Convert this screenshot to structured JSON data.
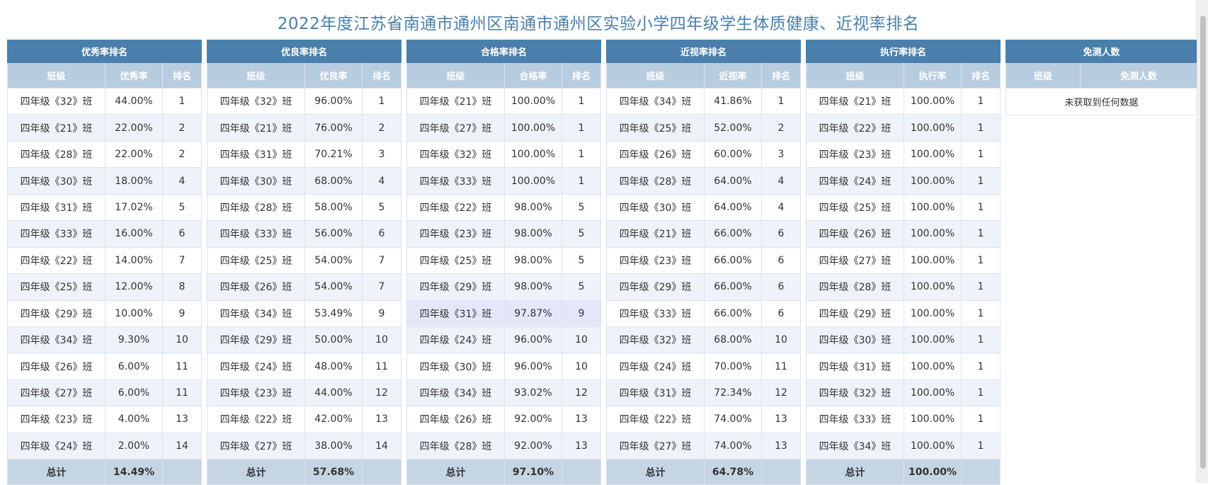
{
  "title": "2022年度江苏省南通市通州区南通市通州区实验小学四年级学生体质健康、近视率排名",
  "panels": [
    {
      "title": "优秀率排名",
      "cols": [
        "班级",
        "优秀率",
        "排名"
      ],
      "rows": [
        [
          "四年级《32》班",
          "44.00%",
          "1"
        ],
        [
          "四年级《21》班",
          "22.00%",
          "2"
        ],
        [
          "四年级《28》班",
          "22.00%",
          "2"
        ],
        [
          "四年级《30》班",
          "18.00%",
          "4"
        ],
        [
          "四年级《31》班",
          "17.02%",
          "5"
        ],
        [
          "四年级《33》班",
          "16.00%",
          "6"
        ],
        [
          "四年级《22》班",
          "14.00%",
          "7"
        ],
        [
          "四年级《25》班",
          "12.00%",
          "8"
        ],
        [
          "四年级《29》班",
          "10.00%",
          "9"
        ],
        [
          "四年级《34》班",
          "9.30%",
          "10"
        ],
        [
          "四年级《26》班",
          "6.00%",
          "11"
        ],
        [
          "四年级《27》班",
          "6.00%",
          "11"
        ],
        [
          "四年级《23》班",
          "4.00%",
          "13"
        ],
        [
          "四年级《24》班",
          "2.00%",
          "14"
        ]
      ],
      "total_label": "总计",
      "total_value": "14.49%"
    },
    {
      "title": "优良率排名",
      "cols": [
        "班级",
        "优良率",
        "排名"
      ],
      "rows": [
        [
          "四年级《32》班",
          "96.00%",
          "1"
        ],
        [
          "四年级《21》班",
          "76.00%",
          "2"
        ],
        [
          "四年级《31》班",
          "70.21%",
          "3"
        ],
        [
          "四年级《30》班",
          "68.00%",
          "4"
        ],
        [
          "四年级《28》班",
          "58.00%",
          "5"
        ],
        [
          "四年级《33》班",
          "56.00%",
          "6"
        ],
        [
          "四年级《25》班",
          "54.00%",
          "7"
        ],
        [
          "四年级《26》班",
          "54.00%",
          "7"
        ],
        [
          "四年级《34》班",
          "53.49%",
          "9"
        ],
        [
          "四年级《29》班",
          "50.00%",
          "10"
        ],
        [
          "四年级《24》班",
          "48.00%",
          "11"
        ],
        [
          "四年级《23》班",
          "44.00%",
          "12"
        ],
        [
          "四年级《22》班",
          "42.00%",
          "13"
        ],
        [
          "四年级《27》班",
          "38.00%",
          "14"
        ]
      ],
      "total_label": "总计",
      "total_value": "57.68%"
    },
    {
      "title": "合格率排名",
      "cols": [
        "班级",
        "合格率",
        "排名"
      ],
      "rows": [
        [
          "四年级《21》班",
          "100.00%",
          "1"
        ],
        [
          "四年级《27》班",
          "100.00%",
          "1"
        ],
        [
          "四年级《32》班",
          "100.00%",
          "1"
        ],
        [
          "四年级《33》班",
          "100.00%",
          "1"
        ],
        [
          "四年级《22》班",
          "98.00%",
          "5"
        ],
        [
          "四年级《23》班",
          "98.00%",
          "5"
        ],
        [
          "四年级《25》班",
          "98.00%",
          "5"
        ],
        [
          "四年级《29》班",
          "98.00%",
          "5"
        ],
        [
          "四年级《31》班",
          "97.87%",
          "9"
        ],
        [
          "四年级《24》班",
          "96.00%",
          "10"
        ],
        [
          "四年级《30》班",
          "96.00%",
          "10"
        ],
        [
          "四年级《34》班",
          "93.02%",
          "12"
        ],
        [
          "四年级《26》班",
          "92.00%",
          "13"
        ],
        [
          "四年级《28》班",
          "92.00%",
          "13"
        ]
      ],
      "highlight_row": 8,
      "total_label": "总计",
      "total_value": "97.10%"
    },
    {
      "title": "近视率排名",
      "cols": [
        "班级",
        "近视率",
        "排名"
      ],
      "rows": [
        [
          "四年级《34》班",
          "41.86%",
          "1"
        ],
        [
          "四年级《25》班",
          "52.00%",
          "2"
        ],
        [
          "四年级《26》班",
          "60.00%",
          "3"
        ],
        [
          "四年级《28》班",
          "64.00%",
          "4"
        ],
        [
          "四年级《30》班",
          "64.00%",
          "4"
        ],
        [
          "四年级《21》班",
          "66.00%",
          "6"
        ],
        [
          "四年级《23》班",
          "66.00%",
          "6"
        ],
        [
          "四年级《29》班",
          "66.00%",
          "6"
        ],
        [
          "四年级《33》班",
          "66.00%",
          "6"
        ],
        [
          "四年级《32》班",
          "68.00%",
          "10"
        ],
        [
          "四年级《24》班",
          "70.00%",
          "11"
        ],
        [
          "四年级《31》班",
          "72.34%",
          "12"
        ],
        [
          "四年级《22》班",
          "74.00%",
          "13"
        ],
        [
          "四年级《27》班",
          "74.00%",
          "13"
        ]
      ],
      "total_label": "总计",
      "total_value": "64.78%"
    },
    {
      "title": "执行率排名",
      "cols": [
        "班级",
        "执行率",
        "排名"
      ],
      "rows": [
        [
          "四年级《21》班",
          "100.00%",
          "1"
        ],
        [
          "四年级《22》班",
          "100.00%",
          "1"
        ],
        [
          "四年级《23》班",
          "100.00%",
          "1"
        ],
        [
          "四年级《24》班",
          "100.00%",
          "1"
        ],
        [
          "四年级《25》班",
          "100.00%",
          "1"
        ],
        [
          "四年级《26》班",
          "100.00%",
          "1"
        ],
        [
          "四年级《27》班",
          "100.00%",
          "1"
        ],
        [
          "四年级《28》班",
          "100.00%",
          "1"
        ],
        [
          "四年级《29》班",
          "100.00%",
          "1"
        ],
        [
          "四年级《30》班",
          "100.00%",
          "1"
        ],
        [
          "四年级《31》班",
          "100.00%",
          "1"
        ],
        [
          "四年级《32》班",
          "100.00%",
          "1"
        ],
        [
          "四年级《33》班",
          "100.00%",
          "1"
        ],
        [
          "四年级《34》班",
          "100.00%",
          "1"
        ]
      ],
      "total_label": "总计",
      "total_value": "100.00%"
    }
  ],
  "exempt": {
    "title": "免测人数",
    "cols": [
      "班级",
      "免测人数"
    ],
    "empty_text": "未获取到任何数据"
  },
  "colors": {
    "header": "#4a7fab",
    "subheader": "#b8cce0",
    "row_alt": "#eef3f9",
    "footer": "#c6d5e4",
    "highlight": "#e6e6fa",
    "title_text": "#4a7fab"
  }
}
